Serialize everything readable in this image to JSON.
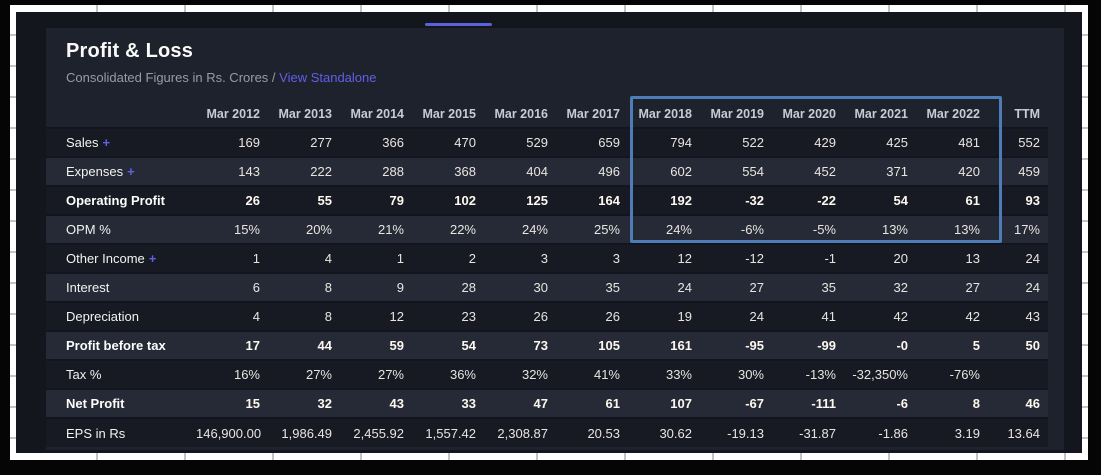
{
  "page": {
    "tab_indicator_color": "#5a61dd"
  },
  "card": {
    "title": "Profit & Loss",
    "subtitle": "Consolidated Figures in Rs. Crores /",
    "link_label": "View Standalone",
    "link_color": "#615fe8"
  },
  "table": {
    "columns": [
      "Mar 2012",
      "Mar 2013",
      "Mar 2014",
      "Mar 2015",
      "Mar 2016",
      "Mar 2017",
      "Mar 2018",
      "Mar 2019",
      "Mar 2020",
      "Mar 2021",
      "Mar 2022",
      "TTM"
    ],
    "rows": [
      {
        "label": "Sales",
        "expand": "+",
        "bold": false,
        "values": [
          "169",
          "277",
          "366",
          "470",
          "529",
          "659",
          "794",
          "522",
          "429",
          "425",
          "481",
          "552"
        ]
      },
      {
        "label": "Expenses",
        "expand": "+",
        "bold": false,
        "values": [
          "143",
          "222",
          "288",
          "368",
          "404",
          "496",
          "602",
          "554",
          "452",
          "371",
          "420",
          "459"
        ]
      },
      {
        "label": "Operating Profit",
        "bold": true,
        "values": [
          "26",
          "55",
          "79",
          "102",
          "125",
          "164",
          "192",
          "-32",
          "-22",
          "54",
          "61",
          "93"
        ]
      },
      {
        "label": "OPM %",
        "bold": false,
        "values": [
          "15%",
          "20%",
          "21%",
          "22%",
          "24%",
          "25%",
          "24%",
          "-6%",
          "-5%",
          "13%",
          "13%",
          "17%"
        ]
      },
      {
        "label": "Other Income",
        "expand": "+",
        "bold": false,
        "values": [
          "1",
          "4",
          "1",
          "2",
          "3",
          "3",
          "12",
          "-12",
          "-1",
          "20",
          "13",
          "24"
        ]
      },
      {
        "label": "Interest",
        "bold": false,
        "values": [
          "6",
          "8",
          "9",
          "28",
          "30",
          "35",
          "24",
          "27",
          "35",
          "32",
          "27",
          "24"
        ]
      },
      {
        "label": "Depreciation",
        "bold": false,
        "values": [
          "4",
          "8",
          "12",
          "23",
          "26",
          "26",
          "19",
          "24",
          "41",
          "42",
          "42",
          "43"
        ]
      },
      {
        "label": "Profit before tax",
        "bold": true,
        "values": [
          "17",
          "44",
          "59",
          "54",
          "73",
          "105",
          "161",
          "-95",
          "-99",
          "-0",
          "5",
          "50"
        ]
      },
      {
        "label": "Tax %",
        "bold": false,
        "values": [
          "16%",
          "27%",
          "27%",
          "36%",
          "32%",
          "41%",
          "33%",
          "30%",
          "-13%",
          "-32,350%",
          "-76%",
          ""
        ]
      },
      {
        "label": "Net Profit",
        "bold": true,
        "values": [
          "15",
          "32",
          "43",
          "33",
          "47",
          "61",
          "107",
          "-67",
          "-111",
          "-6",
          "8",
          "46"
        ]
      },
      {
        "label": "EPS in Rs",
        "bold": false,
        "values": [
          "146,900.00",
          "1,986.49",
          "2,455.92",
          "1,557.42",
          "2,308.87",
          "20.53",
          "30.62",
          "-19.13",
          "-31.87",
          "-1.86",
          "3.19",
          "13.64"
        ]
      }
    ]
  },
  "highlight": {
    "from_column": "Mar 2018",
    "to_column": "Mar 2022",
    "border_color": "#4d7cb7"
  },
  "accent": {
    "plus_color": "#615fe8"
  }
}
